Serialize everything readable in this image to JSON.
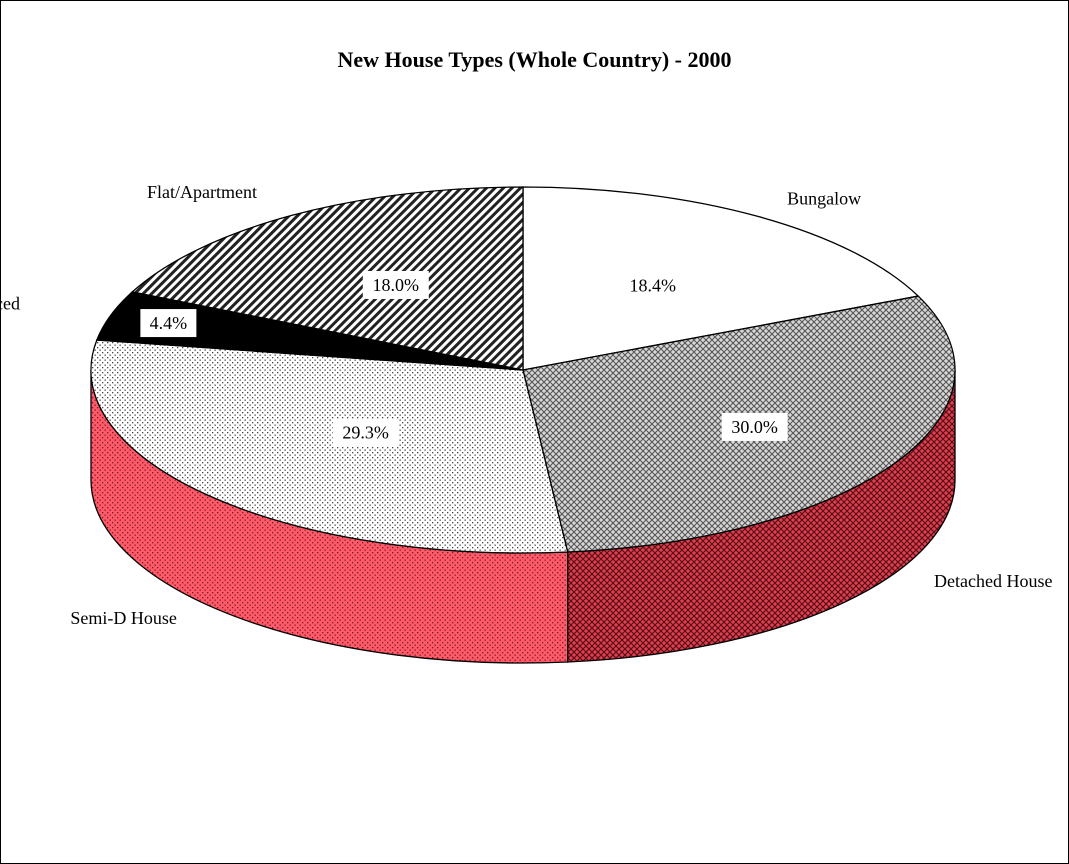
{
  "chart_data": {
    "type": "pie",
    "title": "New House Types (Whole Country) - 2000",
    "categories": [
      "Bungalow",
      "Detached House",
      "Semi-D House",
      "Terraced",
      "Flat/Apartment"
    ],
    "values": [
      18.4,
      30.0,
      29.3,
      4.4,
      18.0
    ],
    "value_labels": [
      "18.4%",
      "30.0%",
      "29.3%",
      "4.4%",
      "18.0%"
    ],
    "three_d": true,
    "legend": "none"
  },
  "colors": {
    "side_fill": "#ff5a6a",
    "detached_fill": "#cfcfcf",
    "semi_d_fill": "#ffffff",
    "terraced_fill": "#000000",
    "flat_fill": "#ffffff",
    "bungalow_fill": "#ffffff"
  },
  "patterns": {
    "Bungalow": "solid-white",
    "Detached House": "grey-crosshatch",
    "Semi-D House": "dotted",
    "Terraced": "solid-black",
    "Flat/Apartment": "diagonal-stripes"
  }
}
